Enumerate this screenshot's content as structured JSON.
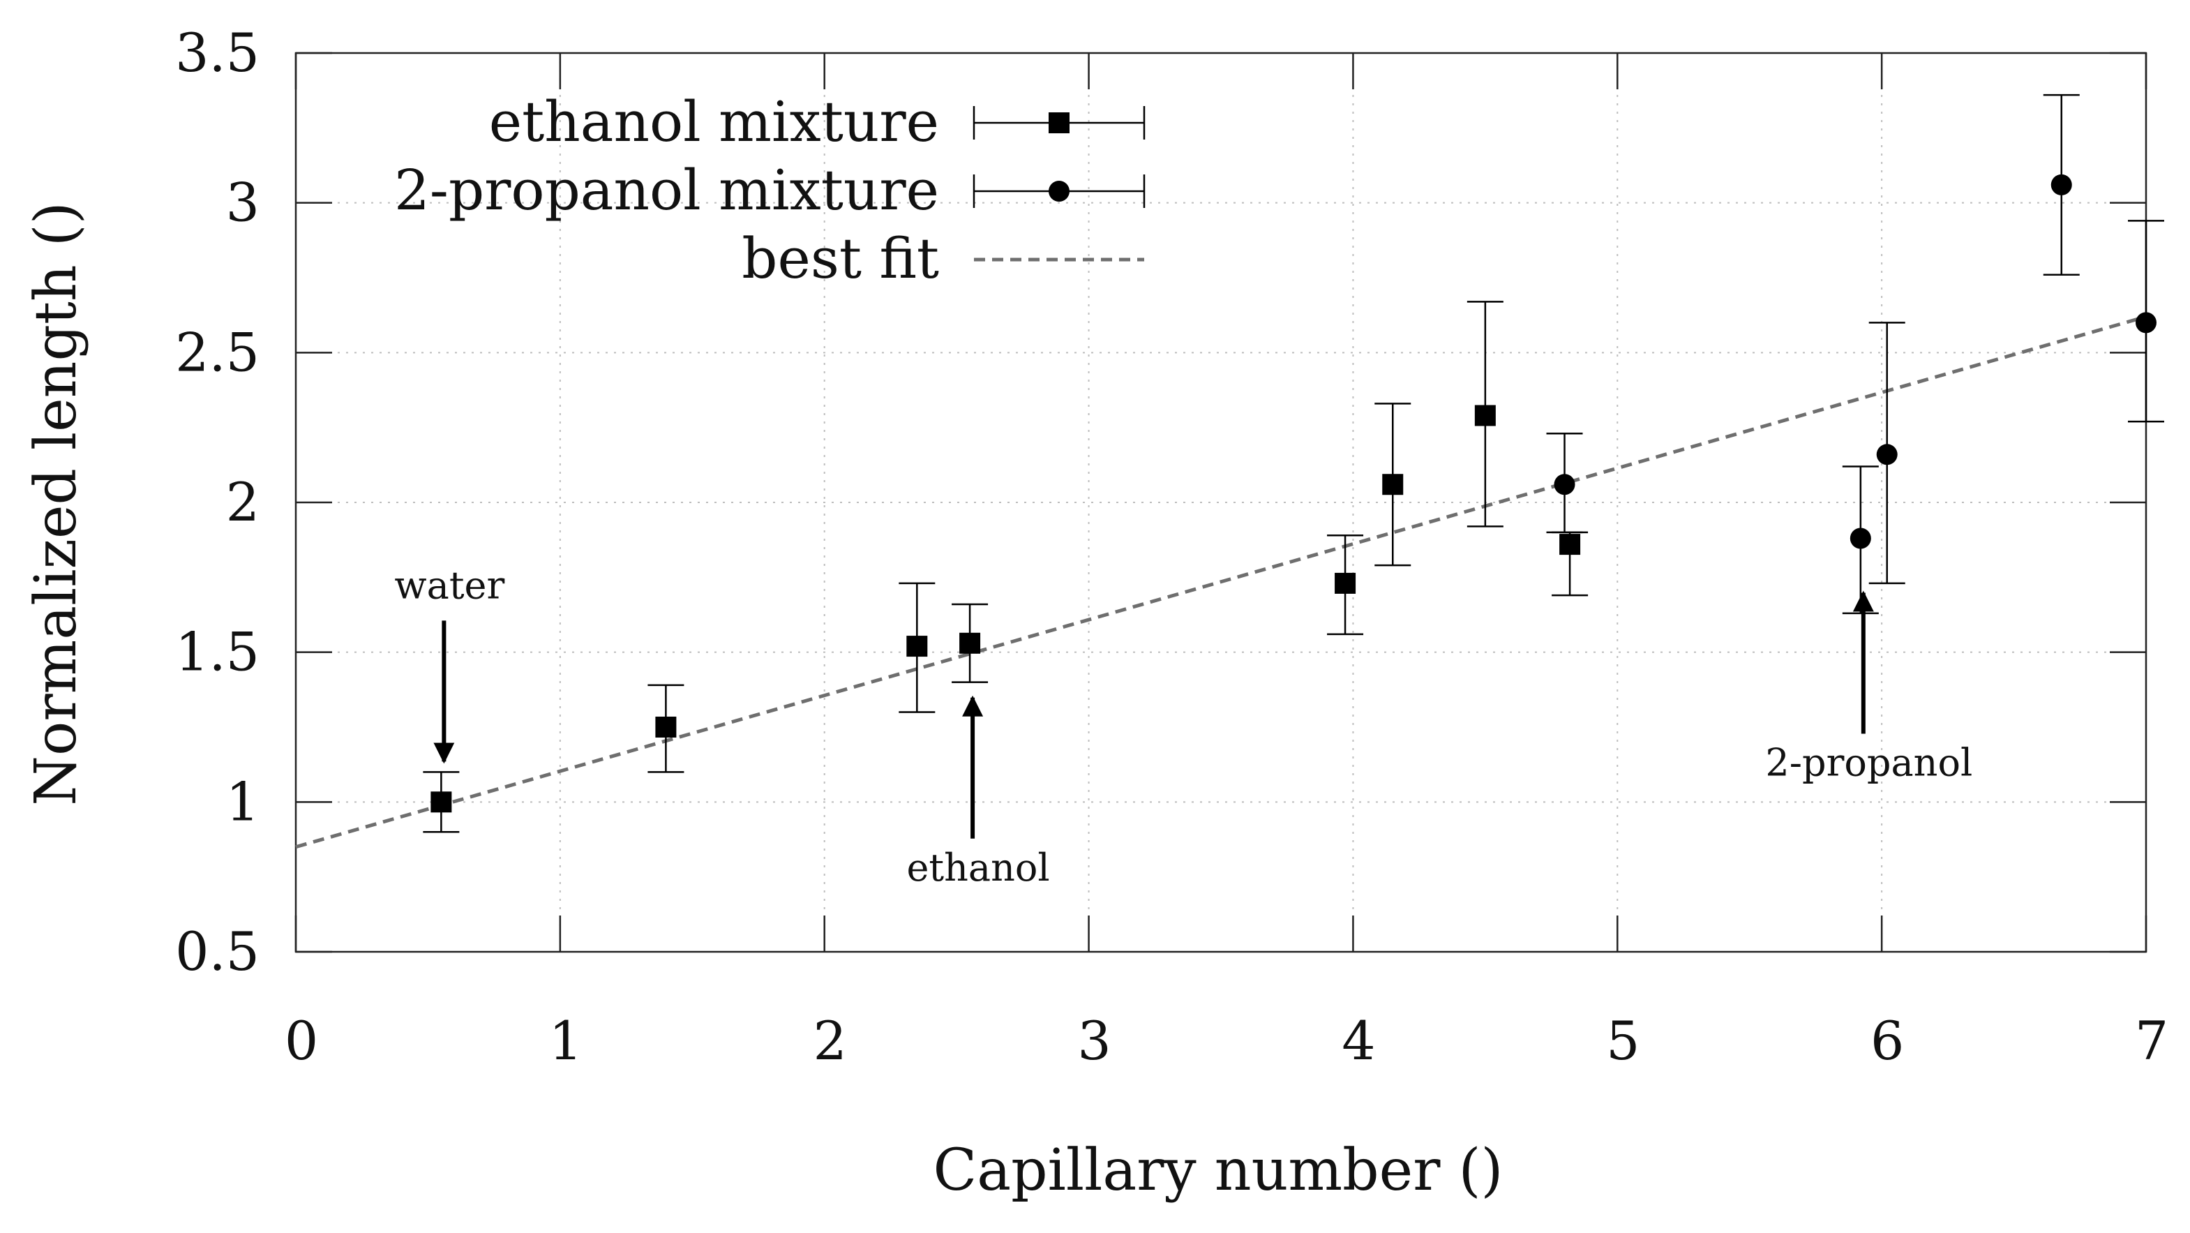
{
  "chart_data": {
    "type": "scatter",
    "title": "",
    "xlabel": "Capillary number ()",
    "ylabel": "Normalized length ()",
    "xlim": [
      0,
      7
    ],
    "ylim": [
      0.5,
      3.5
    ],
    "xticks": [
      "0",
      "1",
      "2",
      "3",
      "4",
      "5",
      "6",
      "7"
    ],
    "yticks": [
      "0.5",
      "1",
      "1.5",
      "2",
      "2.5",
      "3",
      "3.5"
    ],
    "grid": true,
    "legend_position": "top-left",
    "series": [
      {
        "name": "ethanol mixture",
        "marker": "square",
        "points": [
          {
            "x": 0.55,
            "y": 1.0,
            "err_low": 0.9,
            "err_high": 1.1
          },
          {
            "x": 1.4,
            "y": 1.25,
            "err_low": 1.1,
            "err_high": 1.39
          },
          {
            "x": 2.35,
            "y": 1.52,
            "err_low": 1.3,
            "err_high": 1.73
          },
          {
            "x": 2.55,
            "y": 1.53,
            "err_low": 1.4,
            "err_high": 1.66
          },
          {
            "x": 3.97,
            "y": 1.73,
            "err_low": 1.56,
            "err_high": 1.89
          },
          {
            "x": 4.15,
            "y": 2.06,
            "err_low": 1.79,
            "err_high": 2.33
          },
          {
            "x": 4.5,
            "y": 2.29,
            "err_low": 1.92,
            "err_high": 2.67
          },
          {
            "x": 4.82,
            "y": 1.86,
            "err_low": 1.69,
            "err_high": 1.9
          }
        ]
      },
      {
        "name": "2-propanol mixture",
        "marker": "circle",
        "points": [
          {
            "x": 4.8,
            "y": 2.06,
            "err_low": 1.9,
            "err_high": 2.23
          },
          {
            "x": 5.92,
            "y": 1.88,
            "err_low": 1.63,
            "err_high": 2.12
          },
          {
            "x": 6.02,
            "y": 2.16,
            "err_low": 1.73,
            "err_high": 2.6
          },
          {
            "x": 6.68,
            "y": 3.06,
            "err_low": 2.76,
            "err_high": 3.36
          },
          {
            "x": 7.0,
            "y": 2.6,
            "err_low": 2.27,
            "err_high": 2.94
          }
        ]
      },
      {
        "name": "best fit",
        "style": "dashed",
        "line": {
          "x": [
            0,
            7
          ],
          "y": [
            0.85,
            2.62
          ]
        }
      }
    ],
    "annotations": [
      {
        "text": "water",
        "x": 0.55,
        "y": 1.0,
        "arrow": "down"
      },
      {
        "text": "ethanol",
        "x": 2.55,
        "y": 1.53,
        "arrow": "up"
      },
      {
        "text": "2-propanol",
        "x": 5.92,
        "y": 1.88,
        "arrow": "up"
      }
    ],
    "colors": {
      "marker": "#000000",
      "fit": "#6e6e6e",
      "grid": "#bdbdbd",
      "axis": "#222222"
    }
  }
}
